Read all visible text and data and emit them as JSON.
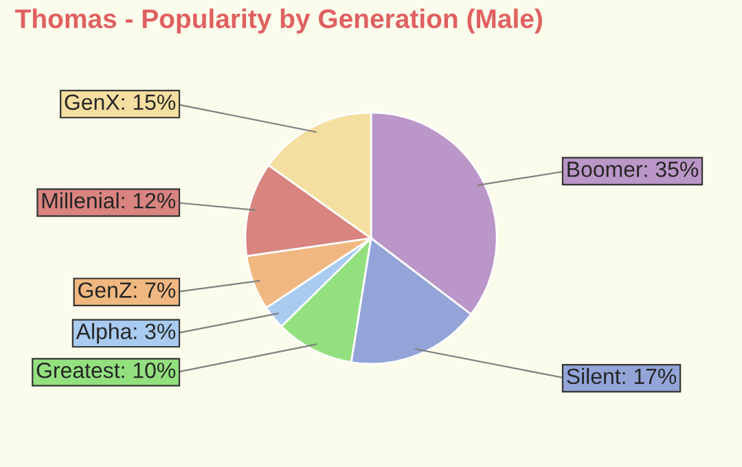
{
  "chart_data": {
    "type": "pie",
    "title": "Thomas - Popularity by Generation (Male)",
    "categories": [
      "Boomer",
      "Silent",
      "Greatest",
      "Alpha",
      "GenZ",
      "Millenial",
      "GenX"
    ],
    "values": [
      35,
      17,
      10,
      3,
      7,
      12,
      15
    ],
    "value_labels": [
      "35%",
      "17%",
      "10%",
      "3%",
      "7%",
      "12%",
      "15%"
    ],
    "colors": [
      "#bb96c8",
      "#93a5d8",
      "#93e07f",
      "#a8cbef",
      "#f0b880",
      "#d9847f",
      "#f5dfa0"
    ]
  }
}
